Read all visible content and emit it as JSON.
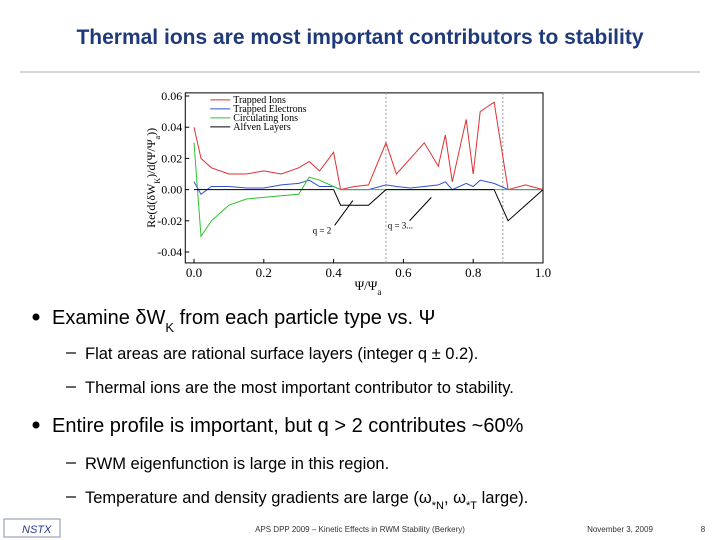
{
  "header": {
    "title": "Thermal ions are most important contributors to stability"
  },
  "chart_data": {
    "type": "line",
    "y_label": [
      {
        "text": "Re(d(δW"
      },
      {
        "sub": "K"
      },
      {
        "text": ")/d(Ψ/Ψ"
      },
      {
        "sub": "a"
      },
      {
        "text": "))"
      }
    ],
    "x_label": [
      {
        "text": "Ψ/Ψ"
      },
      {
        "sub": "a"
      }
    ],
    "annotations": [
      "q = 2",
      "q = 3..."
    ],
    "x": [
      0.0,
      0.02,
      0.05,
      0.1,
      0.15,
      0.2,
      0.25,
      0.3,
      0.33,
      0.36,
      0.4,
      0.42,
      0.46,
      0.5,
      0.55,
      0.58,
      0.62,
      0.66,
      0.7,
      0.72,
      0.74,
      0.78,
      0.8,
      0.82,
      0.86,
      0.9,
      0.95,
      1.0
    ],
    "series": [
      {
        "name": "Trapped Ions",
        "color": "#e03030",
        "values": [
          0.04,
          0.02,
          0.014,
          0.01,
          0.01,
          0.012,
          0.01,
          0.014,
          0.018,
          0.012,
          0.024,
          0,
          0.002,
          0.003,
          0.03,
          0.01,
          0.02,
          0.03,
          0.015,
          0.035,
          0.005,
          0.045,
          0.01,
          0.05,
          0.056,
          0,
          0.003,
          0
        ]
      },
      {
        "name": "Trapped Electrons",
        "color": "#3050d0",
        "values": [
          0.005,
          -0.003,
          0.002,
          0.002,
          0.001,
          0.001,
          0.003,
          0.004,
          0.006,
          0.002,
          0.002,
          0,
          0,
          0,
          0.003,
          0.002,
          0.001,
          0.002,
          0.003,
          0.005,
          0,
          0.004,
          0.002,
          0.006,
          0.004,
          0,
          0,
          0
        ]
      },
      {
        "name": "Circulating Ions",
        "color": "#30c030",
        "values": [
          0.03,
          -0.03,
          -0.02,
          -0.01,
          -0.006,
          -0.005,
          -0.004,
          -0.003,
          0.008,
          0.006,
          0.002,
          0,
          0,
          0,
          0,
          0,
          0,
          0,
          0,
          0,
          0,
          0,
          0,
          0,
          0,
          0,
          0,
          0
        ]
      },
      {
        "name": "Alfven Layers",
        "color": "#000000",
        "values": [
          0,
          0,
          0,
          0,
          0,
          0,
          0,
          0,
          0,
          0,
          0,
          -0.01,
          -0.01,
          -0.01,
          0,
          0,
          0,
          0,
          0,
          0,
          0,
          0,
          0,
          0,
          0,
          -0.02,
          -0.01,
          0
        ]
      }
    ],
    "xlim": [
      -0.025,
      1.0
    ],
    "xticks": [
      {
        "value": 0,
        "label": "0.0"
      },
      {
        "value": 0.2,
        "label": "0.2"
      },
      {
        "value": 0.4,
        "label": "0.4"
      },
      {
        "value": 0.6,
        "label": "0.6"
      },
      {
        "value": 0.8,
        "label": "0.8"
      },
      {
        "value": 1,
        "label": "1.0"
      }
    ],
    "ylim": [
      -0.047,
      0.062
    ],
    "yticks": [
      {
        "value": -0.04,
        "label": "-0.04"
      },
      {
        "value": -0.02,
        "label": "-0.02"
      },
      {
        "value": 0,
        "label": "0.00"
      },
      {
        "value": 0.02,
        "label": "0.02"
      },
      {
        "value": 0.04,
        "label": "0.04"
      },
      {
        "value": 0.06,
        "label": "0.06"
      }
    ],
    "legend": "upper-left"
  },
  "bullets": [
    {
      "text": [
        {
          "text": "Examine δW"
        },
        {
          "sub": "K"
        },
        {
          "text": " from each particle type vs. Ψ"
        }
      ],
      "subs": [
        [
          {
            "text": "Flat areas are rational surface layers (integer q ± 0.2)."
          }
        ],
        [
          {
            "text": "Thermal ions are the most important contributor to stability."
          }
        ]
      ]
    },
    {
      "text": [
        {
          "text": "Entire profile is important, but q > 2 contributes ~60%"
        }
      ],
      "subs": [
        [
          {
            "text": "RWM eigenfunction is large in this region."
          }
        ],
        [
          {
            "text": "Temperature and density gradients are large (ω"
          },
          {
            "sub": "*N"
          },
          {
            "text": ", ω"
          },
          {
            "sub": "*T"
          },
          {
            "text": " large)."
          }
        ]
      ]
    }
  ],
  "footer": {
    "logo": "NSTX",
    "center": "APS DPP 2009 – Kinetic Effects in RWM Stability (Berkery)",
    "date": "November 3, 2009",
    "page": "8"
  }
}
